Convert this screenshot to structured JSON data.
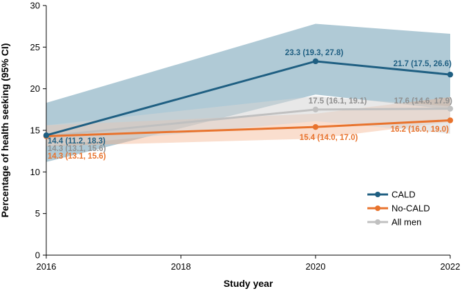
{
  "chart_data": {
    "type": "line",
    "xlabel": "Study year",
    "ylabel": "Percentage of health seeking (95% CI)",
    "xlim": [
      2016,
      2022
    ],
    "ylim": [
      0,
      30
    ],
    "xticks": [
      2016,
      2018,
      2020,
      2022
    ],
    "yticks": [
      0,
      5,
      10,
      15,
      20,
      25,
      30
    ],
    "legend_position": "bottom-right",
    "series": [
      {
        "name": "CALD",
        "color": "#1f5f82",
        "band_color": "#7fa9bd",
        "x": [
          2016,
          2020,
          2022
        ],
        "values": [
          14.4,
          23.3,
          21.7
        ],
        "lower": [
          11.2,
          19.3,
          17.5
        ],
        "upper": [
          18.3,
          27.8,
          26.6
        ],
        "labels": [
          "14.4 (11.2, 18.3)",
          "23.3 (19.3, 27.8)",
          "21.7 (17.5, 26.6)"
        ]
      },
      {
        "name": "No-CALD",
        "color": "#e8732d",
        "band_color": "#f4b08a",
        "x": [
          2016,
          2020,
          2022
        ],
        "values": [
          14.3,
          15.4,
          16.2
        ],
        "lower": [
          13.1,
          14.0,
          16.0
        ],
        "upper": [
          15.6,
          17.0,
          19.0
        ],
        "labels": [
          "14.3 (13.1, 15.6)",
          "15.4 (14.0, 17.0)",
          "16.2 (16.0, 19.0)"
        ]
      },
      {
        "name": "All men",
        "color": "#c0c0c0",
        "band_color": "#d6d6d6",
        "x": [
          2016,
          2020,
          2022
        ],
        "values": [
          14.3,
          17.5,
          17.6
        ],
        "lower": [
          13.1,
          16.1,
          14.6
        ],
        "upper": [
          15.6,
          19.1,
          17.9
        ],
        "labels": [
          "14.3 (13.1, 15.6)",
          "17.5 (16.1, 19.1)",
          "17.6 (14.6, 17.9)"
        ]
      }
    ]
  }
}
